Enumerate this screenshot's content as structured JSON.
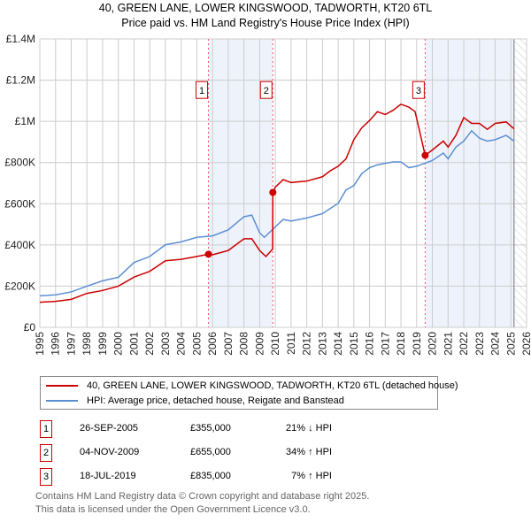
{
  "chart_data": {
    "type": "line",
    "title": "40, GREEN LANE, LOWER KINGSWOOD, TADWORTH, KT20 6TL",
    "subtitle": "Price paid vs. HM Land Registry's House Price Index (HPI)",
    "xlim": [
      1995,
      2026
    ],
    "ylim": [
      0,
      1400000
    ],
    "x_ticks": [
      "1995",
      "1996",
      "1997",
      "1998",
      "1999",
      "2000",
      "2001",
      "2002",
      "2003",
      "2004",
      "2005",
      "2006",
      "2007",
      "2008",
      "2009",
      "2010",
      "2011",
      "2012",
      "2013",
      "2014",
      "2015",
      "2016",
      "2017",
      "2018",
      "2019",
      "2020",
      "2021",
      "2022",
      "2023",
      "2024",
      "2025",
      "2026"
    ],
    "y_ticks": [
      {
        "v": 0,
        "label": "£0"
      },
      {
        "v": 200000,
        "label": "£200K"
      },
      {
        "v": 400000,
        "label": "£400K"
      },
      {
        "v": 600000,
        "label": "£600K"
      },
      {
        "v": 800000,
        "label": "£800K"
      },
      {
        "v": 1000000,
        "label": "£1M"
      },
      {
        "v": 1200000,
        "label": "£1.2M"
      },
      {
        "v": 1400000,
        "label": "£1.4M"
      }
    ],
    "grid": true,
    "shaded_periods": [
      [
        2005.74,
        2009.84
      ],
      [
        2019.54,
        2025.2
      ]
    ],
    "data_end": 2025.2,
    "series": [
      {
        "name": "40, GREEN LANE, LOWER KINGSWOOD, TADWORTH, KT20 6TL (detached house)",
        "color": "#cc0000",
        "x": [
          1995,
          1996,
          1997,
          1998,
          1999,
          2000,
          2001,
          2002,
          2003,
          2004,
          2005,
          2005.74,
          2006,
          2007,
          2008,
          2008.5,
          2009,
          2009.4,
          2009.83,
          2009.84,
          2010,
          2010.5,
          2011,
          2012,
          2013,
          2013.5,
          2014,
          2014.5,
          2015,
          2015.5,
          2016,
          2016.5,
          2017,
          2017.5,
          2018,
          2018.5,
          2018.9,
          2019.54,
          2020,
          2020.7,
          2021,
          2021.5,
          2022,
          2022.5,
          2023,
          2023.5,
          2024,
          2024.7,
          2025.2
        ],
        "y": [
          122000,
          126000,
          136000,
          165000,
          179000,
          200000,
          244000,
          272000,
          323000,
          330000,
          344000,
          355000,
          352000,
          373000,
          430000,
          430000,
          373000,
          344000,
          380000,
          655000,
          681000,
          717000,
          703000,
          710000,
          731000,
          760000,
          782000,
          818000,
          911000,
          968000,
          1004000,
          1047000,
          1033000,
          1054000,
          1083000,
          1069000,
          1047000,
          835000,
          861000,
          904000,
          875000,
          932000,
          1018000,
          990000,
          990000,
          961000,
          990000,
          997000,
          964000
        ]
      },
      {
        "name": "HPI: Average price, detached house, Reigate and Banstead",
        "color": "#5b8fd4",
        "x": [
          1995,
          1996,
          1997,
          1998,
          1999,
          2000,
          2001,
          2002,
          2003,
          2004,
          2005,
          2006,
          2007,
          2008,
          2008.5,
          2009,
          2009.3,
          2010,
          2010.5,
          2011,
          2012,
          2013,
          2013.5,
          2014,
          2014.5,
          2015,
          2015.5,
          2016,
          2016.5,
          2017,
          2017.5,
          2018,
          2018.5,
          2019,
          2019.5,
          2020,
          2020.7,
          2021,
          2021.5,
          2022,
          2022.5,
          2023,
          2023.5,
          2024,
          2024.7,
          2025.2
        ],
        "y": [
          153000,
          158000,
          172000,
          200000,
          226000,
          243000,
          315000,
          344000,
          401000,
          415000,
          437000,
          444000,
          473000,
          537000,
          545000,
          459000,
          437000,
          488000,
          524000,
          516000,
          531000,
          552000,
          577000,
          602000,
          667000,
          688000,
          746000,
          775000,
          789000,
          796000,
          803000,
          803000,
          775000,
          782000,
          796000,
          810000,
          846000,
          818000,
          875000,
          904000,
          954000,
          918000,
          904000,
          911000,
          932000,
          904000
        ]
      }
    ],
    "sales": [
      {
        "n": "1",
        "x": 2005.74,
        "y": 355000,
        "date": "26-SEP-2005",
        "price": "£355,000",
        "hpi": "21% ↓ HPI"
      },
      {
        "n": "2",
        "x": 2009.84,
        "y": 655000,
        "date": "04-NOV-2009",
        "price": "£655,000",
        "hpi": "34% ↑ HPI"
      },
      {
        "n": "3",
        "x": 2019.54,
        "y": 835000,
        "date": "18-JUL-2019",
        "price": "£835,000",
        "hpi": "7% ↑ HPI"
      }
    ],
    "marker_label_value": 1150000,
    "legend_position": "below"
  },
  "footer": [
    "Contains HM Land Registry data © Crown copyright and database right 2025.",
    "This data is licensed under the Open Government Licence v3.0."
  ]
}
